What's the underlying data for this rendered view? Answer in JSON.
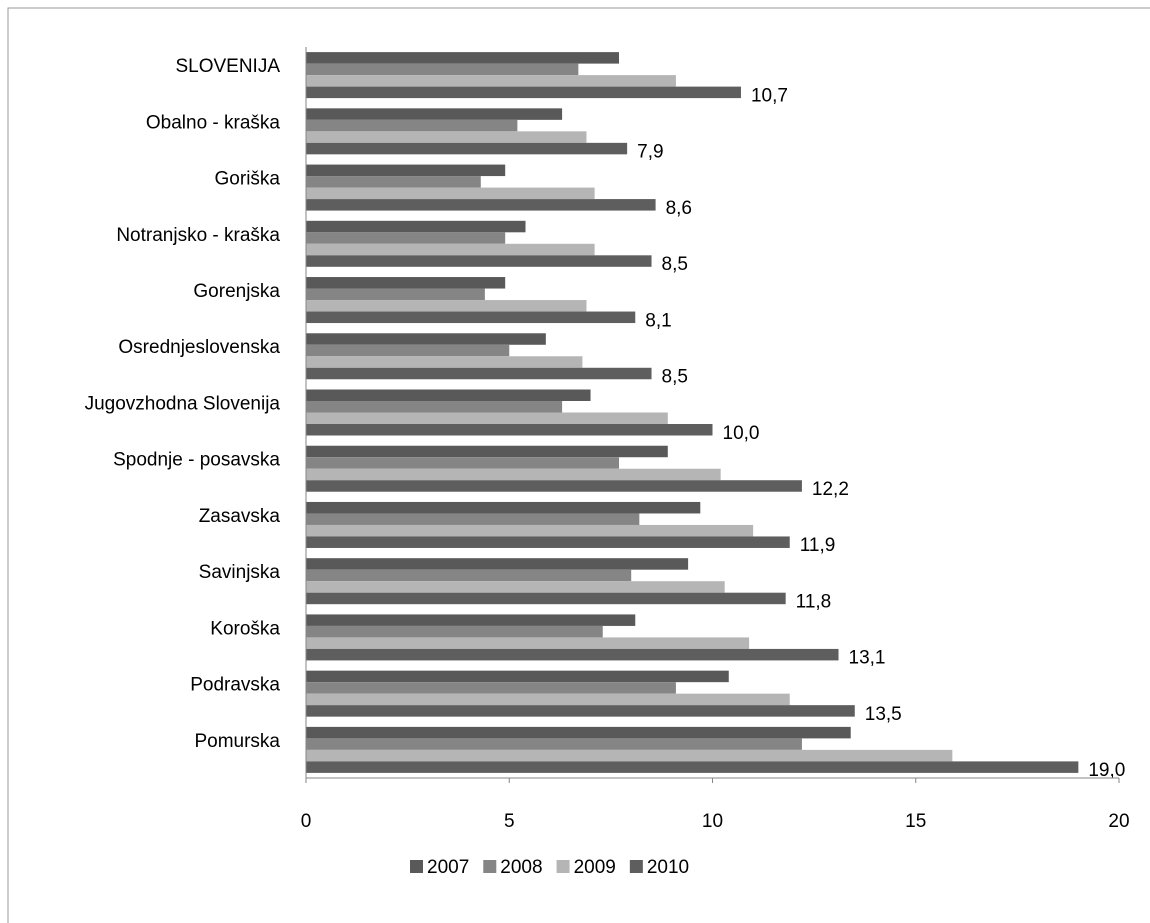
{
  "chart_data": {
    "type": "bar",
    "orientation": "horizontal",
    "categories": [
      "SLOVENIJA",
      "Obalno - kraška",
      "Goriška",
      "Notranjsko - kraška",
      "Gorenjska",
      "Osrednjeslovenska",
      "Jugovzhodna Slovenija",
      "Spodnje - posavska",
      "Zasavska",
      "Savinjska",
      "Koroška",
      "Podravska",
      "Pomurska"
    ],
    "series": [
      {
        "name": "2007",
        "color": "#595959",
        "values": [
          7.7,
          6.3,
          4.9,
          5.4,
          4.9,
          5.9,
          7.0,
          8.9,
          9.7,
          9.4,
          8.1,
          10.4,
          13.4
        ]
      },
      {
        "name": "2008",
        "color": "#858585",
        "values": [
          6.7,
          5.2,
          4.3,
          4.9,
          4.4,
          5.0,
          6.3,
          7.7,
          8.2,
          8.0,
          7.3,
          9.1,
          12.2
        ]
      },
      {
        "name": "2009",
        "color": "#b5b5b5",
        "values": [
          9.1,
          6.9,
          7.1,
          7.1,
          6.9,
          6.8,
          8.9,
          10.2,
          11.0,
          10.3,
          10.9,
          11.9,
          15.9
        ]
      },
      {
        "name": "2010",
        "color": "#5e5e5e",
        "values": [
          10.7,
          7.9,
          8.6,
          8.5,
          8.1,
          8.5,
          10.0,
          12.2,
          11.9,
          11.8,
          13.1,
          13.5,
          19.0
        ],
        "value_labels": [
          "10,7",
          "7,9",
          "8,6",
          "8,5",
          "8,1",
          "8,5",
          "10,0",
          "12,2",
          "11,9",
          "11,8",
          "13,1",
          "13,5",
          "19,0"
        ]
      }
    ],
    "xlim": [
      0,
      20
    ],
    "xticks": [
      0,
      5,
      10,
      15,
      20
    ],
    "legend": "bottom"
  }
}
